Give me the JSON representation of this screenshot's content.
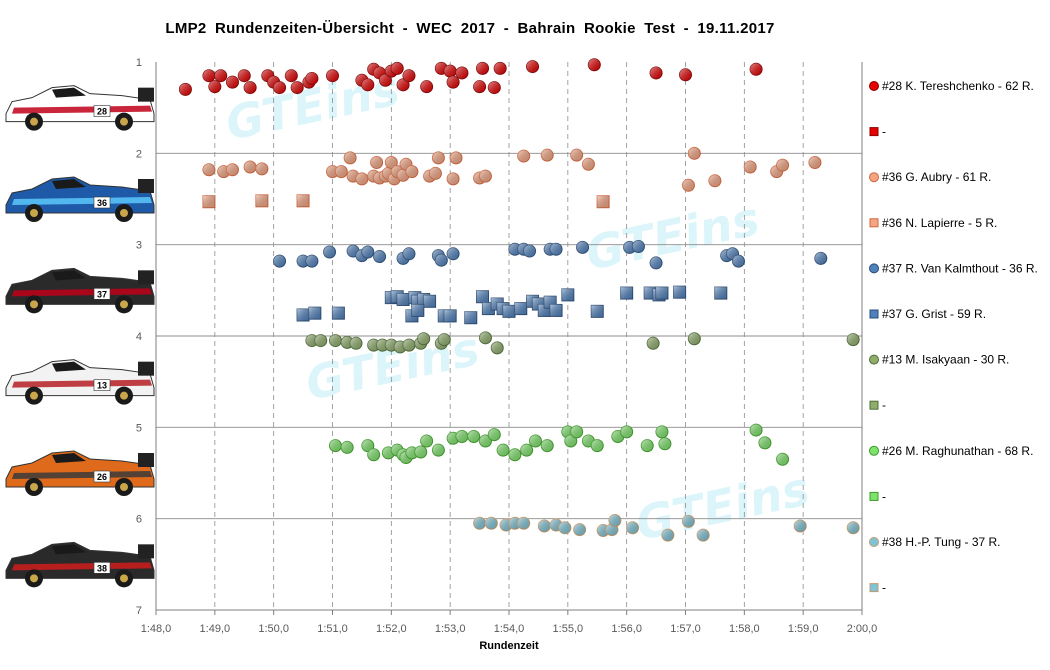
{
  "chart_data": {
    "type": "scatter",
    "title": "LMP2  Rundenzeiten-Übersicht  - WEC 2017  - Bahrain  Rookie  Test  - 19.11.2017",
    "xlabel": "Rundenzeit",
    "ylabel": "",
    "xlim": [
      108,
      120
    ],
    "ylim": [
      1,
      7
    ],
    "x_tick_labels": [
      "1:48,0",
      "1:49,0",
      "1:50,0",
      "1:51,0",
      "1:52,0",
      "1:53,0",
      "1:54,0",
      "1:55,0",
      "1:56,0",
      "1:57,0",
      "1:58,0",
      "1:59,0",
      "2:00,0"
    ],
    "y_tick_labels": [
      "1",
      "2",
      "3",
      "4",
      "5",
      "6",
      "7"
    ],
    "grid": {
      "x": "dashed",
      "y": "solid"
    },
    "legend_position": "right",
    "watermark": "GTEins",
    "series": [
      {
        "name": "#28 K. Tereshchenko - 62 R.",
        "marker": "circle",
        "color": "#e60000",
        "stroke": "#8b0000",
        "x": [
          108.5,
          108.9,
          109.0,
          109.1,
          109.3,
          109.5,
          109.6,
          109.9,
          110.0,
          110.1,
          110.3,
          110.4,
          110.6,
          110.65,
          111.0,
          111.5,
          111.6,
          111.7,
          111.8,
          111.9,
          112.0,
          112.1,
          112.2,
          112.3,
          112.6,
          112.85,
          113.0,
          113.05,
          113.2,
          113.5,
          113.55,
          113.75,
          113.85,
          114.4,
          115.45,
          116.5,
          117.0,
          118.2
        ],
        "y": [
          1.3,
          1.15,
          1.27,
          1.15,
          1.22,
          1.15,
          1.28,
          1.15,
          1.22,
          1.28,
          1.15,
          1.28,
          1.22,
          1.18,
          1.15,
          1.2,
          1.25,
          1.08,
          1.12,
          1.2,
          1.1,
          1.07,
          1.25,
          1.15,
          1.27,
          1.07,
          1.1,
          1.22,
          1.12,
          1.27,
          1.07,
          1.28,
          1.07,
          1.05,
          1.03,
          1.12,
          1.14,
          1.08
        ]
      },
      {
        "name": "-",
        "marker": "square",
        "color": "#e60000",
        "stroke": "#8b0000",
        "x": [],
        "y": []
      },
      {
        "name": "#36 G. Aubry - 61 R.",
        "marker": "circle",
        "color": "#f4a582",
        "stroke": "#d0663e",
        "x": [
          108.9,
          109.15,
          109.3,
          109.6,
          109.8,
          111.0,
          111.15,
          111.3,
          111.35,
          111.5,
          111.7,
          111.75,
          111.8,
          111.9,
          111.95,
          112.0,
          112.05,
          112.1,
          112.2,
          112.25,
          112.35,
          112.65,
          112.75,
          112.8,
          113.05,
          113.1,
          113.5,
          113.6,
          114.25,
          114.65,
          115.15,
          115.35,
          117.05,
          117.15,
          117.5,
          118.1,
          118.55,
          118.65,
          119.2
        ],
        "y": [
          2.18,
          2.2,
          2.18,
          2.15,
          2.17,
          2.2,
          2.2,
          2.05,
          2.25,
          2.28,
          2.25,
          2.1,
          2.27,
          2.25,
          2.22,
          2.1,
          2.28,
          2.2,
          2.24,
          2.12,
          2.2,
          2.25,
          2.22,
          2.05,
          2.28,
          2.05,
          2.27,
          2.25,
          2.03,
          2.02,
          2.02,
          2.12,
          2.35,
          2.0,
          2.3,
          2.15,
          2.2,
          2.13,
          2.1
        ]
      },
      {
        "name": "#36 N. Lapierre - 5 R.",
        "marker": "square",
        "color": "#f4a582",
        "stroke": "#d0663e",
        "x": [
          108.9,
          109.8,
          110.5,
          115.6
        ],
        "y": [
          2.53,
          2.52,
          2.52,
          2.53
        ]
      },
      {
        "name": "#37 R. Van Kalmthout - 36 R.",
        "marker": "circle",
        "color": "#4f81bd",
        "stroke": "#2c4d75",
        "x": [
          110.1,
          110.5,
          110.65,
          110.95,
          111.35,
          111.5,
          111.6,
          111.8,
          112.2,
          112.3,
          112.8,
          112.85,
          113.05,
          114.1,
          114.25,
          114.35,
          114.7,
          114.8,
          115.25,
          116.05,
          116.2,
          116.5,
          117.7,
          117.8,
          117.9,
          119.3
        ],
        "y": [
          3.18,
          3.18,
          3.18,
          3.08,
          3.07,
          3.12,
          3.08,
          3.13,
          3.15,
          3.1,
          3.12,
          3.17,
          3.1,
          3.05,
          3.05,
          3.07,
          3.05,
          3.05,
          3.03,
          3.03,
          3.02,
          3.2,
          3.12,
          3.1,
          3.18,
          3.15
        ]
      },
      {
        "name": "#37 G. Grist - 59 R.",
        "marker": "square",
        "color": "#4f81bd",
        "stroke": "#2c4d75",
        "x": [
          110.5,
          110.7,
          111.1,
          112.0,
          112.1,
          112.2,
          112.4,
          112.45,
          112.55,
          112.65,
          112.35,
          112.45,
          112.9,
          113.0,
          113.35,
          113.55,
          113.65,
          113.8,
          113.9,
          114.0,
          114.2,
          114.4,
          114.5,
          114.6,
          114.7,
          114.8,
          115.0,
          115.5,
          116.0,
          116.4,
          116.55,
          116.6,
          116.9,
          117.6
        ],
        "y": [
          3.77,
          3.75,
          3.75,
          3.58,
          3.57,
          3.6,
          3.58,
          3.62,
          3.6,
          3.62,
          3.78,
          3.72,
          3.78,
          3.78,
          3.8,
          3.57,
          3.7,
          3.65,
          3.7,
          3.73,
          3.7,
          3.62,
          3.65,
          3.72,
          3.63,
          3.72,
          3.55,
          3.73,
          3.53,
          3.53,
          3.55,
          3.53,
          3.52,
          3.53
        ]
      },
      {
        "name": "#13 M. Isakyaan - 30 R.",
        "marker": "circle",
        "color": "#8fae6b",
        "stroke": "#4f6b38",
        "x": [
          110.65,
          110.8,
          111.05,
          111.25,
          111.4,
          111.7,
          111.85,
          112.0,
          112.15,
          112.3,
          112.5,
          112.55,
          112.85,
          112.9,
          113.6,
          113.8,
          116.45,
          117.15,
          119.85
        ],
        "y": [
          4.05,
          4.05,
          4.05,
          4.07,
          4.08,
          4.1,
          4.1,
          4.1,
          4.12,
          4.1,
          4.08,
          4.03,
          4.08,
          4.04,
          4.02,
          4.13,
          4.08,
          4.03,
          4.04
        ]
      },
      {
        "name": "-",
        "marker": "square",
        "color": "#8fae6b",
        "stroke": "#4f6b38",
        "x": [],
        "y": []
      },
      {
        "name": "#26 M. Raghunathan - 68 R.",
        "marker": "circle",
        "color": "#7ee36b",
        "stroke": "#3e9b2a",
        "x": [
          111.05,
          111.25,
          111.6,
          111.7,
          111.95,
          112.1,
          112.2,
          112.25,
          112.35,
          112.5,
          112.6,
          112.8,
          113.05,
          113.2,
          113.4,
          113.6,
          113.75,
          113.9,
          114.1,
          114.3,
          114.45,
          114.65,
          115.0,
          115.05,
          115.15,
          115.35,
          115.5,
          115.85,
          116.0,
          116.35,
          116.6,
          116.65,
          118.2,
          118.35,
          118.65
        ],
        "y": [
          5.2,
          5.22,
          5.2,
          5.3,
          5.28,
          5.25,
          5.3,
          5.33,
          5.28,
          5.27,
          5.15,
          5.25,
          5.12,
          5.1,
          5.1,
          5.15,
          5.08,
          5.25,
          5.3,
          5.25,
          5.15,
          5.2,
          5.05,
          5.15,
          5.05,
          5.15,
          5.2,
          5.1,
          5.05,
          5.2,
          5.05,
          5.18,
          5.03,
          5.17,
          5.35
        ]
      },
      {
        "name": "-",
        "marker": "square",
        "color": "#7ee36b",
        "stroke": "#3e9b2a",
        "x": [],
        "y": []
      },
      {
        "name": "#38 H.-P. Tung - 37 R.",
        "marker": "circle",
        "color": "#7ec3d6",
        "stroke": "#c49a6c",
        "x": [
          113.5,
          113.7,
          113.95,
          114.1,
          114.25,
          114.6,
          114.8,
          114.95,
          115.2,
          115.6,
          115.75,
          115.8,
          116.1,
          116.7,
          117.05,
          117.3,
          118.95,
          119.85
        ],
        "y": [
          6.05,
          6.05,
          6.07,
          6.05,
          6.05,
          6.08,
          6.07,
          6.1,
          6.12,
          6.13,
          6.12,
          6.02,
          6.1,
          6.18,
          6.03,
          6.18,
          6.08,
          6.1
        ]
      },
      {
        "name": "-",
        "marker": "square",
        "color": "#7ec3d6",
        "stroke": "#c49a6c",
        "x": [],
        "y": []
      }
    ]
  },
  "cars": [
    {
      "number": "28",
      "livery": "#ffffff",
      "accent": "#c0001a"
    },
    {
      "number": "36",
      "livery": "#1f5aa8",
      "accent": "#5ac8fa"
    },
    {
      "number": "37",
      "livery": "#2a2a2a",
      "accent": "#c0001a"
    },
    {
      "number": "13",
      "livery": "#f2f2f2",
      "accent": "#b51f24"
    },
    {
      "number": "26",
      "livery": "#e06a1b",
      "accent": "#3a3a3a"
    },
    {
      "number": "38",
      "livery": "#2a2a2a",
      "accent": "#d01c1c"
    }
  ]
}
